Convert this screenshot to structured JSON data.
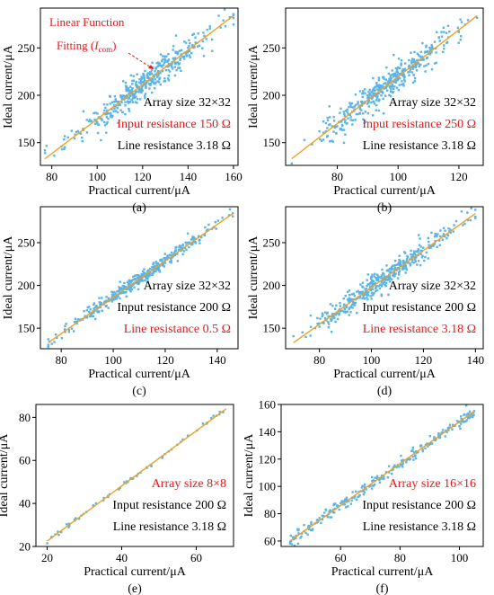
{
  "figure": {
    "panels": [
      {
        "letter": "(a)",
        "annotations": [
          {
            "text": "Array size 32×32",
            "color": "#000000"
          },
          {
            "text": "Input resistance 150 Ω",
            "color": "#e31a1c"
          },
          {
            "text": "Line resistance 3.18 Ω",
            "color": "#000000"
          }
        ],
        "callout": {
          "line1": "Linear Function",
          "line2_prefix": "Fitting (",
          "line2_var": "I",
          "line2_sub": "com",
          "line2_suffix": ")"
        }
      },
      {
        "letter": "(b)",
        "annotations": [
          {
            "text": "Array size 32×32",
            "color": "#000000"
          },
          {
            "text": "Input resistance 250 Ω",
            "color": "#e31a1c"
          },
          {
            "text": "Line resistance 3.18 Ω",
            "color": "#000000"
          }
        ]
      },
      {
        "letter": "(c)",
        "annotations": [
          {
            "text": "Array size 32×32",
            "color": "#000000"
          },
          {
            "text": "Input resistance 200 Ω",
            "color": "#000000"
          },
          {
            "text": "Line resistance 0.5 Ω",
            "color": "#e31a1c"
          }
        ]
      },
      {
        "letter": "(d)",
        "annotations": [
          {
            "text": "Array size 32×32",
            "color": "#000000"
          },
          {
            "text": "Input resistance 200 Ω",
            "color": "#000000"
          },
          {
            "text": "Line resistance 3.18 Ω",
            "color": "#e31a1c"
          }
        ]
      },
      {
        "letter": "(e)",
        "annotations": [
          {
            "text": "Array size 8×8",
            "color": "#e31a1c"
          },
          {
            "text": "Input resistance 200 Ω",
            "color": "#000000"
          },
          {
            "text": "Line resistance 3.18 Ω",
            "color": "#000000"
          }
        ]
      },
      {
        "letter": "(f)",
        "annotations": [
          {
            "text": "Array size 16×16",
            "color": "#e31a1c"
          },
          {
            "text": "Input resistance 200 Ω",
            "color": "#000000"
          },
          {
            "text": "Line resistance 3.18 Ω",
            "color": "#000000"
          }
        ]
      }
    ]
  },
  "colors": {
    "points": "#5ab4e8",
    "fit_line": "#f0a020",
    "highlight": "#e31a1c",
    "text": "#000000"
  },
  "chart_data": [
    {
      "type": "scatter",
      "xlabel": "Practical current/μA",
      "ylabel": "Ideal current/μA",
      "xlim": [
        75,
        162
      ],
      "ylim": [
        126,
        292
      ],
      "xticks": [
        80,
        100,
        120,
        140,
        160
      ],
      "yticks": [
        150,
        200,
        250
      ],
      "n_points": 420,
      "fit": {
        "x": [
          77,
          160
        ],
        "y": [
          133,
          284
        ]
      }
    },
    {
      "type": "scatter",
      "xlabel": "Practical current/μA",
      "ylabel": "Ideal current/μA",
      "xlim": [
        63,
        128
      ],
      "ylim": [
        126,
        292
      ],
      "xticks": [
        80,
        100,
        120
      ],
      "yticks": [
        150,
        200,
        250
      ],
      "n_points": 420,
      "fit": {
        "x": [
          65,
          126
        ],
        "y": [
          133,
          284
        ]
      }
    },
    {
      "type": "scatter",
      "xlabel": "Practical current/μA",
      "ylabel": "Ideal current/μA",
      "xlim": [
        72,
        148
      ],
      "ylim": [
        126,
        292
      ],
      "xticks": [
        80,
        100,
        120,
        140
      ],
      "yticks": [
        150,
        200,
        250
      ],
      "n_points": 420,
      "fit": {
        "x": [
          75,
          146
        ],
        "y": [
          133,
          284
        ]
      }
    },
    {
      "type": "scatter",
      "xlabel": "Practical current/μA",
      "ylabel": "Ideal current/μA",
      "xlim": [
        67,
        143
      ],
      "ylim": [
        126,
        292
      ],
      "xticks": [
        80,
        100,
        120,
        140
      ],
      "yticks": [
        150,
        200,
        250
      ],
      "n_points": 420,
      "fit": {
        "x": [
          70,
          140
        ],
        "y": [
          133,
          284
        ]
      }
    },
    {
      "type": "scatter",
      "xlabel": "Practical current/μA",
      "ylabel": "Ideal current/μA",
      "xlim": [
        17,
        70
      ],
      "ylim": [
        20,
        86
      ],
      "xticks": [
        20,
        40,
        60
      ],
      "yticks": [
        20,
        40,
        60,
        80
      ],
      "n_points": 64,
      "fit": {
        "x": [
          20,
          68
        ],
        "y": [
          22.5,
          84
        ]
      }
    },
    {
      "type": "scatter",
      "xlabel": "Practical current/μA",
      "ylabel": "Ideal current/μA",
      "xlim": [
        40,
        108
      ],
      "ylim": [
        56,
        160
      ],
      "xticks": [
        60,
        80,
        100
      ],
      "yticks": [
        60,
        80,
        100,
        120,
        140,
        160
      ],
      "n_points": 256,
      "fit": {
        "x": [
          43,
          105
        ],
        "y": [
          60,
          155
        ]
      }
    }
  ]
}
